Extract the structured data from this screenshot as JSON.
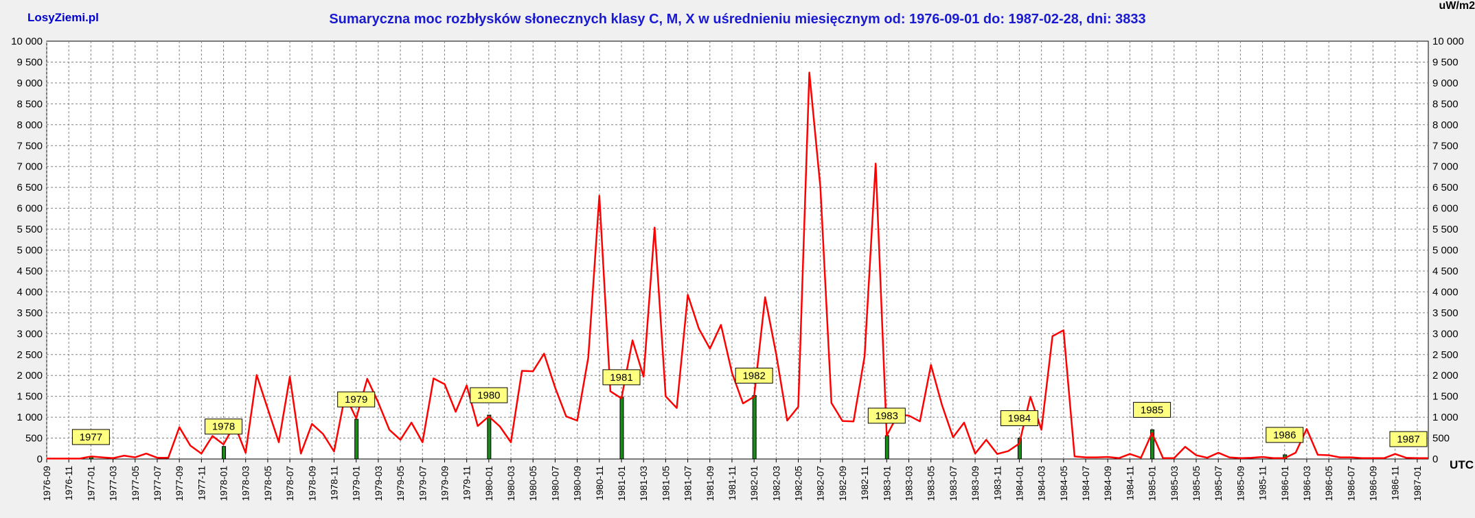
{
  "header": {
    "site": "LosyZiemi.pl",
    "unit_top": "uW/m2",
    "unit_bottom": "UTC"
  },
  "chart_data": {
    "type": "line",
    "title": "Sumaryczna moc rozbłysków słonecznych klasy C, M, X w uśrednieniu miesięcznym od: 1976-09-01 do: 1987-02-28, dni: 3833",
    "ylabel": "uW/m2",
    "xlabel": "UTC",
    "ylim": [
      0,
      10000
    ],
    "yticks": [
      0,
      500,
      1000,
      1500,
      2000,
      2500,
      3000,
      3500,
      4000,
      4500,
      5000,
      5500,
      6000,
      6500,
      7000,
      7500,
      8000,
      8500,
      9000,
      9500,
      10000
    ],
    "ytick_labels": [
      "0",
      "500",
      "1 000",
      "1 500",
      "2 000",
      "2 500",
      "3 000",
      "3 500",
      "4 000",
      "4 500",
      "5 000",
      "5 500",
      "6 000",
      "6 500",
      "7 000",
      "7 500",
      "8 000",
      "8 500",
      "9 000",
      "9 500",
      "10 000"
    ],
    "xtick_labels": [
      "1976-09",
      "1976-11",
      "1977-01",
      "1977-03",
      "1977-05",
      "1977-07",
      "1977-09",
      "1977-11",
      "1978-01",
      "1978-03",
      "1978-05",
      "1978-07",
      "1978-09",
      "1978-11",
      "1979-01",
      "1979-03",
      "1979-05",
      "1979-07",
      "1979-09",
      "1979-11",
      "1980-01",
      "1980-03",
      "1980-05",
      "1980-07",
      "1980-09",
      "1980-11",
      "1981-01",
      "1981-03",
      "1981-05",
      "1981-07",
      "1981-09",
      "1981-11",
      "1982-01",
      "1982-03",
      "1982-05",
      "1982-07",
      "1982-09",
      "1982-11",
      "1983-01",
      "1983-03",
      "1983-05",
      "1983-07",
      "1983-09",
      "1983-11",
      "1984-01",
      "1984-03",
      "1984-05",
      "1984-07",
      "1984-09",
      "1984-11",
      "1985-01",
      "1985-03",
      "1985-05",
      "1985-07",
      "1985-09",
      "1985-11",
      "1986-01",
      "1986-03",
      "1986-05",
      "1986-07",
      "1986-09",
      "1986-11",
      "1987-01"
    ],
    "grid": true,
    "series": [
      {
        "color": "#ff0000",
        "x": [
          "1976-09",
          "1976-10",
          "1976-11",
          "1976-12",
          "1977-01",
          "1977-02",
          "1977-03",
          "1977-04",
          "1977-05",
          "1977-06",
          "1977-07",
          "1977-08",
          "1977-09",
          "1977-10",
          "1977-11",
          "1977-12",
          "1978-01",
          "1978-02",
          "1978-03",
          "1978-04",
          "1978-05",
          "1978-06",
          "1978-07",
          "1978-08",
          "1978-09",
          "1978-10",
          "1978-11",
          "1978-12",
          "1979-01",
          "1979-02",
          "1979-03",
          "1979-04",
          "1979-05",
          "1979-06",
          "1979-07",
          "1979-08",
          "1979-09",
          "1979-10",
          "1979-11",
          "1979-12",
          "1980-01",
          "1980-02",
          "1980-03",
          "1980-04",
          "1980-05",
          "1980-06",
          "1980-07",
          "1980-08",
          "1980-09",
          "1980-10",
          "1980-11",
          "1980-12",
          "1981-01",
          "1981-02",
          "1981-03",
          "1981-04",
          "1981-05",
          "1981-06",
          "1981-07",
          "1981-08",
          "1981-09",
          "1981-10",
          "1981-11",
          "1981-12",
          "1982-01",
          "1982-02",
          "1982-03",
          "1982-04",
          "1982-05",
          "1982-06",
          "1982-07",
          "1982-08",
          "1982-09",
          "1982-10",
          "1982-11",
          "1982-12",
          "1983-01",
          "1983-02",
          "1983-03",
          "1983-04",
          "1983-05",
          "1983-06",
          "1983-07",
          "1983-08",
          "1983-09",
          "1983-10",
          "1983-11",
          "1983-12",
          "1984-01",
          "1984-02",
          "1984-03",
          "1984-04",
          "1984-05",
          "1984-06",
          "1984-07",
          "1984-08",
          "1984-09",
          "1984-10",
          "1984-11",
          "1984-12",
          "1985-01",
          "1985-02",
          "1985-03",
          "1985-04",
          "1985-05",
          "1985-06",
          "1985-07",
          "1985-08",
          "1985-09",
          "1985-10",
          "1985-11",
          "1985-12",
          "1986-01",
          "1986-02",
          "1986-03",
          "1986-04",
          "1986-05",
          "1986-06",
          "1986-07",
          "1986-08",
          "1986-09",
          "1986-10",
          "1986-11",
          "1986-12",
          "1987-01",
          "1987-02"
        ],
        "values": [
          10,
          10,
          10,
          10,
          60,
          40,
          20,
          80,
          40,
          130,
          30,
          30,
          760,
          320,
          130,
          550,
          350,
          820,
          150,
          2010,
          1200,
          400,
          1970,
          130,
          840,
          600,
          180,
          1530,
          970,
          1920,
          1350,
          700,
          460,
          870,
          400,
          1930,
          1790,
          1130,
          1760,
          790,
          1020,
          780,
          400,
          2110,
          2100,
          2520,
          1710,
          1020,
          920,
          2430,
          6300,
          1620,
          1450,
          2840,
          1970,
          5540,
          1500,
          1220,
          3930,
          3120,
          2640,
          3210,
          2060,
          1330,
          1490,
          3870,
          2510,
          920,
          1250,
          9250,
          6500,
          1340,
          910,
          900,
          2460,
          7070,
          560,
          1060,
          1040,
          900,
          2250,
          1290,
          520,
          870,
          130,
          460,
          120,
          190,
          370,
          1490,
          700,
          2940,
          3080,
          60,
          40,
          40,
          50,
          20,
          120,
          30,
          620,
          20,
          20,
          290,
          90,
          30,
          150,
          40,
          20,
          30,
          50,
          20,
          20,
          150,
          720,
          100,
          90,
          40,
          40,
          20,
          20,
          20,
          120,
          30,
          20,
          20
        ]
      }
    ],
    "year_markers": [
      {
        "label": "1977",
        "x": "1977-01",
        "bar": 50
      },
      {
        "label": "1978",
        "x": "1978-01",
        "bar": 300
      },
      {
        "label": "1979",
        "x": "1979-01",
        "bar": 950
      },
      {
        "label": "1980",
        "x": "1980-01",
        "bar": 1050
      },
      {
        "label": "1981",
        "x": "1981-01",
        "bar": 1480
      },
      {
        "label": "1982",
        "x": "1982-01",
        "bar": 1520
      },
      {
        "label": "1983",
        "x": "1983-01",
        "bar": 560
      },
      {
        "label": "1984",
        "x": "1984-01",
        "bar": 500
      },
      {
        "label": "1985",
        "x": "1985-01",
        "bar": 700
      },
      {
        "label": "1986",
        "x": "1986-01",
        "bar": 100
      },
      {
        "label": "1987",
        "x": "1987-01",
        "bar": 0
      }
    ],
    "colors": {
      "line": "#ff0000",
      "marker_bar": "#1a8a1a",
      "label_box": "#ffff80",
      "title": "#1a1ad0"
    }
  }
}
